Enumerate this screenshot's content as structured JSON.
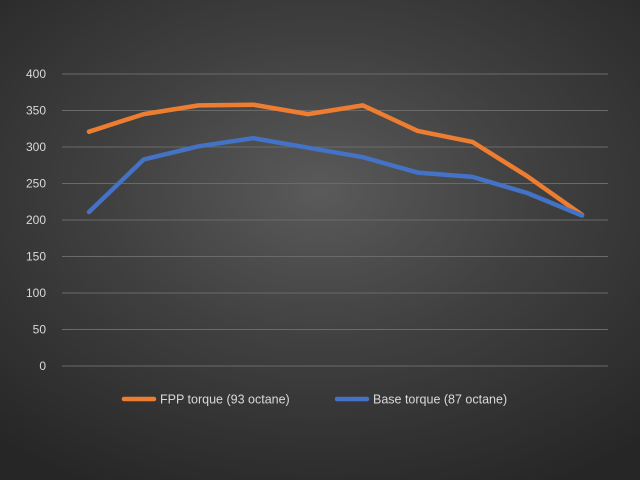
{
  "chart_data": {
    "type": "line",
    "title": "",
    "xlabel": "",
    "ylabel": "",
    "ylim": [
      0,
      400
    ],
    "yticks": [
      0,
      50,
      100,
      150,
      200,
      250,
      300,
      350,
      400
    ],
    "x": [
      1,
      2,
      3,
      4,
      5,
      6,
      7,
      8,
      9,
      10
    ],
    "grid": true,
    "legend_position": "bottom",
    "series": [
      {
        "name": "FPP torque (93 octane)",
        "color": "#ed7d31",
        "values": [
          321,
          345,
          357,
          358,
          345,
          357,
          322,
          307,
          260,
          207
        ]
      },
      {
        "name": "Base torque (87 octane)",
        "color": "#4472c4",
        "values": [
          211,
          283,
          301,
          312,
          299,
          286,
          265,
          259,
          237,
          206
        ]
      }
    ]
  }
}
